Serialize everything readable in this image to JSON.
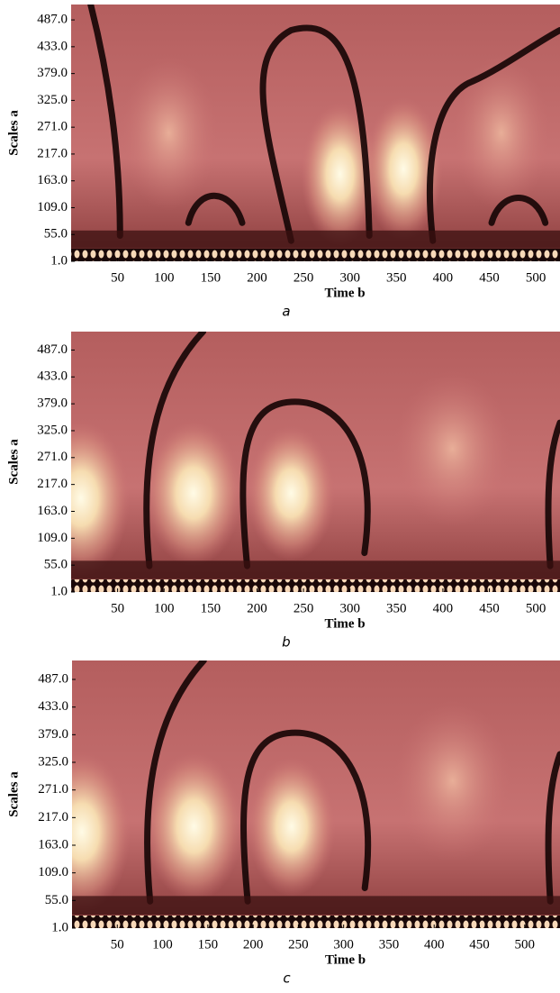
{
  "chart_data": [
    {
      "type": "heatmap",
      "xlabel": "Time b",
      "ylabel": "Scales a",
      "caption": "a",
      "xlim": [
        0,
        526
      ],
      "ylim": [
        1,
        518
      ],
      "xticks": [
        50,
        100,
        150,
        200,
        250,
        300,
        350,
        400,
        450,
        500
      ],
      "yticks": [
        {
          "value": 1,
          "label": "1.0"
        },
        {
          "value": 55,
          "label": "55.0"
        },
        {
          "value": 109,
          "label": "109.0"
        },
        {
          "value": 163,
          "label": "163.0"
        },
        {
          "value": 217,
          "label": "217.0"
        },
        {
          "value": 271,
          "label": "271.0"
        },
        {
          "value": 325,
          "label": "325.0"
        },
        {
          "value": 379,
          "label": "379.0"
        },
        {
          "value": 433,
          "label": "433.0"
        },
        {
          "value": 487,
          "label": "487.0"
        }
      ]
    },
    {
      "type": "heatmap",
      "xlabel": "Time b",
      "ylabel": "Scales a",
      "caption": "b",
      "xlim": [
        0,
        526
      ],
      "ylim": [
        1,
        524
      ],
      "xticks": [
        50,
        100,
        150,
        200,
        250,
        300,
        350,
        400,
        450,
        500
      ],
      "yticks": [
        {
          "value": 1,
          "label": "1.0"
        },
        {
          "value": 55,
          "label": "55.0"
        },
        {
          "value": 109,
          "label": "109.0"
        },
        {
          "value": 163,
          "label": "163.0"
        },
        {
          "value": 217,
          "label": "217.0"
        },
        {
          "value": 271,
          "label": "271.0"
        },
        {
          "value": 325,
          "label": "325.0"
        },
        {
          "value": 379,
          "label": "379.0"
        },
        {
          "value": 433,
          "label": "433.0"
        },
        {
          "value": 487,
          "label": "487.0"
        }
      ]
    },
    {
      "type": "heatmap",
      "xlabel": "Time b",
      "ylabel": "Scales a",
      "caption": "c",
      "xlim": [
        0,
        539
      ],
      "ylim": [
        1,
        524
      ],
      "xticks": [
        50,
        100,
        150,
        200,
        250,
        300,
        350,
        400,
        450,
        500
      ],
      "yticks": [
        {
          "value": 1,
          "label": "1.0"
        },
        {
          "value": 55,
          "label": "55.0"
        },
        {
          "value": 109,
          "label": "109.0"
        },
        {
          "value": 163,
          "label": "163.0"
        },
        {
          "value": 217,
          "label": "217.0"
        },
        {
          "value": 271,
          "label": "271.0"
        },
        {
          "value": 325,
          "label": "325.0"
        },
        {
          "value": 379,
          "label": "379.0"
        },
        {
          "value": 433,
          "label": "433.0"
        },
        {
          "value": 487,
          "label": "487.0"
        }
      ]
    }
  ]
}
